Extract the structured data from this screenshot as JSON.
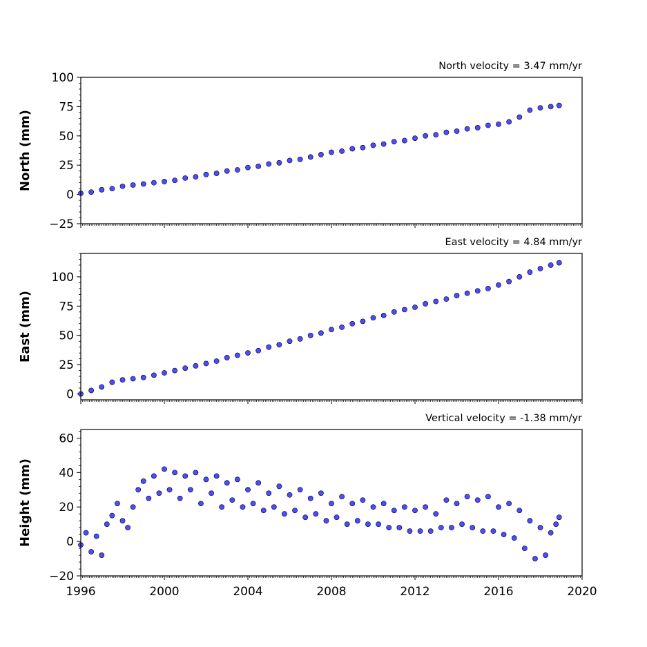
{
  "chart_data": [
    {
      "type": "scatter",
      "title": "North velocity = 3.47 mm/yr",
      "ylabel": "North (mm)",
      "xlabel": "",
      "xlim": [
        1996,
        2020
      ],
      "ylim": [
        -25,
        100
      ],
      "yticks": [
        -25,
        0,
        25,
        50,
        75,
        100
      ],
      "xticks": [],
      "grid": false,
      "marker_color": "#4b4bff",
      "edge_color": "#000000",
      "series": [
        {
          "x": [
            1996.0,
            1996.5,
            1997.0,
            1997.5,
            1998.0,
            1998.5,
            1999.0,
            1999.5,
            2000.0,
            2000.5,
            2001.0,
            2001.5,
            2002.0,
            2002.5,
            2003.0,
            2003.5,
            2004.0,
            2004.5,
            2005.0,
            2005.5,
            2006.0,
            2006.5,
            2007.0,
            2007.5,
            2008.0,
            2008.5,
            2009.0,
            2009.5,
            2010.0,
            2010.5,
            2011.0,
            2011.5,
            2012.0,
            2012.5,
            2013.0,
            2013.5,
            2014.0,
            2014.5,
            2015.0,
            2015.5,
            2016.0,
            2016.5,
            2017.0,
            2017.5,
            2018.0,
            2018.5,
            2018.9
          ],
          "y": [
            1,
            2,
            4,
            5,
            7,
            8,
            9,
            10,
            11,
            12,
            14,
            15,
            17,
            18,
            20,
            21,
            23,
            24,
            26,
            27,
            29,
            30,
            32,
            34,
            36,
            37,
            39,
            40,
            42,
            43,
            45,
            46,
            48,
            50,
            51,
            53,
            54,
            56,
            57,
            59,
            60,
            62,
            66,
            72,
            74,
            75,
            76
          ]
        }
      ]
    },
    {
      "type": "scatter",
      "title": "East velocity = 4.84 mm/yr",
      "ylabel": "East (mm)",
      "xlabel": "",
      "xlim": [
        1996,
        2020
      ],
      "ylim": [
        -5,
        120
      ],
      "yticks": [
        0,
        25,
        50,
        75,
        100
      ],
      "xticks": [],
      "grid": false,
      "marker_color": "#4b4bff",
      "edge_color": "#000000",
      "series": [
        {
          "x": [
            1996.0,
            1996.5,
            1997.0,
            1997.5,
            1998.0,
            1998.5,
            1999.0,
            1999.5,
            2000.0,
            2000.5,
            2001.0,
            2001.5,
            2002.0,
            2002.5,
            2003.0,
            2003.5,
            2004.0,
            2004.5,
            2005.0,
            2005.5,
            2006.0,
            2006.5,
            2007.0,
            2007.5,
            2008.0,
            2008.5,
            2009.0,
            2009.5,
            2010.0,
            2010.5,
            2011.0,
            2011.5,
            2012.0,
            2012.5,
            2013.0,
            2013.5,
            2014.0,
            2014.5,
            2015.0,
            2015.5,
            2016.0,
            2016.5,
            2017.0,
            2017.5,
            2018.0,
            2018.5,
            2018.9
          ],
          "y": [
            0,
            3,
            6,
            10,
            12,
            13,
            14,
            16,
            18,
            20,
            22,
            24,
            26,
            28,
            31,
            33,
            35,
            37,
            40,
            42,
            45,
            47,
            50,
            52,
            55,
            57,
            60,
            62,
            65,
            67,
            70,
            72,
            74,
            77,
            79,
            81,
            84,
            86,
            88,
            90,
            93,
            96,
            100,
            104,
            107,
            110,
            112
          ]
        }
      ]
    },
    {
      "type": "scatter",
      "title": "Vertical velocity = -1.38 mm/yr",
      "ylabel": "Height (mm)",
      "xlabel": "",
      "xlim": [
        1996,
        2020
      ],
      "ylim": [
        -20,
        65
      ],
      "yticks": [
        -20,
        0,
        20,
        40,
        60
      ],
      "xticks": [
        1996,
        2000,
        2004,
        2008,
        2012,
        2016,
        2020
      ],
      "grid": false,
      "marker_color": "#4b4bff",
      "edge_color": "#000000",
      "series": [
        {
          "x": [
            1996.0,
            1996.25,
            1996.5,
            1996.75,
            1997.0,
            1997.25,
            1997.5,
            1997.75,
            1998.0,
            1998.25,
            1998.5,
            1998.75,
            1999.0,
            1999.25,
            1999.5,
            1999.75,
            2000.0,
            2000.25,
            2000.5,
            2000.75,
            2001.0,
            2001.25,
            2001.5,
            2001.75,
            2002.0,
            2002.25,
            2002.5,
            2002.75,
            2003.0,
            2003.25,
            2003.5,
            2003.75,
            2004.0,
            2004.25,
            2004.5,
            2004.75,
            2005.0,
            2005.25,
            2005.5,
            2005.75,
            2006.0,
            2006.25,
            2006.5,
            2006.75,
            2007.0,
            2007.25,
            2007.5,
            2007.75,
            2008.0,
            2008.25,
            2008.5,
            2008.75,
            2009.0,
            2009.25,
            2009.5,
            2009.75,
            2010.0,
            2010.25,
            2010.5,
            2010.75,
            2011.0,
            2011.25,
            2011.5,
            2011.75,
            2012.0,
            2012.25,
            2012.5,
            2012.75,
            2013.0,
            2013.25,
            2013.5,
            2013.75,
            2014.0,
            2014.25,
            2014.5,
            2014.75,
            2015.0,
            2015.25,
            2015.5,
            2015.75,
            2016.0,
            2016.25,
            2016.5,
            2016.75,
            2017.0,
            2017.25,
            2017.5,
            2017.75,
            2018.0,
            2018.25,
            2018.5,
            2018.75,
            2018.9
          ],
          "y": [
            -2,
            5,
            -6,
            3,
            -8,
            10,
            15,
            22,
            12,
            8,
            20,
            30,
            35,
            25,
            38,
            28,
            42,
            30,
            40,
            25,
            38,
            30,
            40,
            22,
            36,
            28,
            38,
            20,
            34,
            24,
            36,
            20,
            30,
            22,
            34,
            18,
            28,
            20,
            32,
            16,
            27,
            18,
            30,
            14,
            25,
            16,
            28,
            12,
            22,
            14,
            26,
            10,
            22,
            12,
            24,
            10,
            20,
            10,
            22,
            8,
            18,
            8,
            20,
            6,
            18,
            6,
            20,
            6,
            16,
            8,
            24,
            8,
            22,
            10,
            26,
            8,
            24,
            6,
            26,
            6,
            20,
            4,
            22,
            2,
            18,
            -4,
            12,
            -10,
            8,
            -8,
            5,
            10,
            14
          ]
        }
      ]
    }
  ]
}
